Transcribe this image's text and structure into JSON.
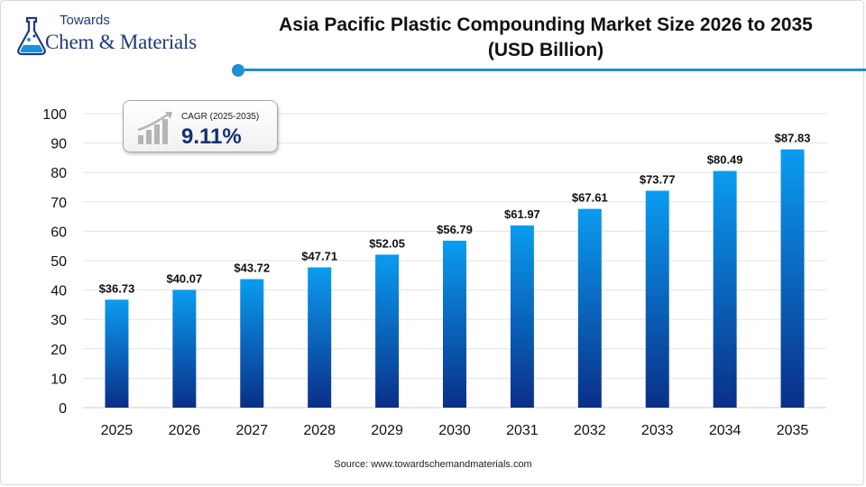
{
  "brand": {
    "logo_top": "Towards",
    "logo_main": "Chem & Materials",
    "accent": "#1f8fd6",
    "navy": "#1e3a7a"
  },
  "cagr": {
    "label": "CAGR (2025-2035)",
    "value": "9.11%",
    "icon": "growth-chart-icon"
  },
  "source": "Source: www.towardschemandmaterials.com",
  "chart_data": {
    "type": "bar",
    "title_lines": [
      "Asia Pacific Plastic Compounding Market Size 2026 to 2035",
      "(USD Billion)"
    ],
    "xlabel": "",
    "ylabel": "",
    "categories": [
      "2025",
      "2026",
      "2027",
      "2028",
      "2029",
      "2030",
      "2031",
      "2032",
      "2033",
      "2034",
      "2035"
    ],
    "values": [
      36.73,
      40.07,
      43.72,
      47.71,
      52.05,
      56.79,
      61.97,
      67.61,
      73.77,
      80.49,
      87.83
    ],
    "data_labels": [
      "$36.73",
      "$40.07",
      "$43.72",
      "$47.71",
      "$52.05",
      "$56.79",
      "$61.97",
      "$67.61",
      "$73.77",
      "$80.49",
      "$87.83"
    ],
    "ylim": [
      0,
      100
    ],
    "yticks": [
      0,
      10,
      20,
      30,
      40,
      50,
      60,
      70,
      80,
      90,
      100
    ],
    "grid": true,
    "legend": "none",
    "bar_gradient": [
      "#0a9cf0",
      "#0a2f88"
    ]
  }
}
